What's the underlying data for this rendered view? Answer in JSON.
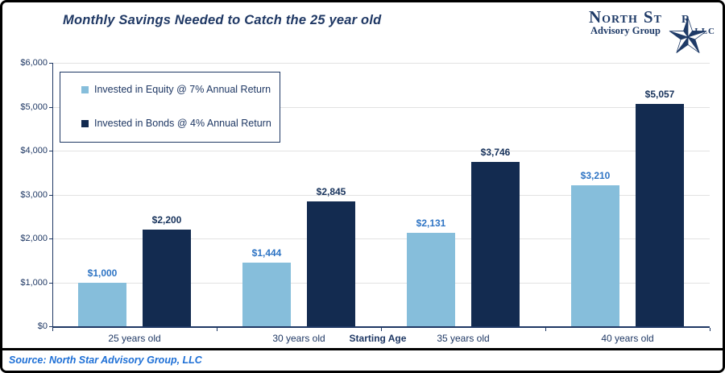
{
  "header": {
    "title": "Monthly Savings Needed to Catch the 25 year old"
  },
  "logo": {
    "word_n": "N",
    "word_orth": "ORTH",
    "word_s": "S",
    "word_t": "T",
    "word_r": "R",
    "subtitle": "Advisory Group",
    "llc": "LLC",
    "color": "#1E3A67"
  },
  "chart_data": {
    "type": "bar",
    "title": "Monthly Savings Needed to Catch the 25 year old",
    "categories": [
      "25 years old",
      "30 years old",
      "35 years old",
      "40 years old"
    ],
    "series": [
      {
        "name": "Invested in Equity @ 7% Annual Return",
        "color": "#86BEDB",
        "label_color": "#2E74C4",
        "values": [
          1000,
          1444,
          2131,
          3210
        ],
        "labels": [
          "$1,000",
          "$1,444",
          "$2,131",
          "$3,210"
        ]
      },
      {
        "name": "Invested in Bonds @ 4% Annual Return",
        "color": "#132B50",
        "label_color": "#17325B",
        "values": [
          2200,
          2845,
          3746,
          5057
        ],
        "labels": [
          "$2,200",
          "$2,845",
          "$3,746",
          "$5,057"
        ]
      }
    ],
    "xlabel": "Starting Age",
    "ylabel": "",
    "ylim": [
      0,
      6000
    ],
    "y_tick_step": 1000,
    "y_tick_labels": [
      "$0",
      "$1,000",
      "$2,000",
      "$3,000",
      "$4,000",
      "$5,000",
      "$6,000"
    ],
    "grid": true,
    "legend_position": "inside-top-left"
  },
  "footer": {
    "source": "Source: North Star Advisory Group, LLC"
  }
}
